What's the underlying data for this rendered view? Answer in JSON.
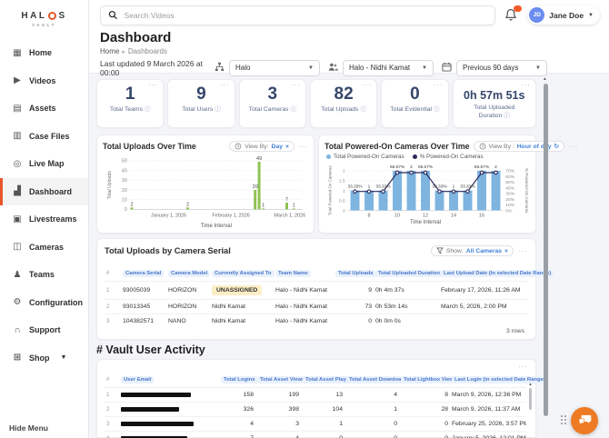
{
  "colors": {
    "accent_orange": "#e8562a",
    "chat_fab": "#ee7a23",
    "link_blue": "#3f7fd6",
    "table_header_blue": "#4a78c9",
    "bar_green": "#8fc152",
    "bar_blue": "#7db4e0",
    "line_navy": "#2e2a5c",
    "stat_navy": "#35466b",
    "badge_orange": "#f25c2a",
    "avatar_blue": "#6b8cf0",
    "unassigned_bg": "#fdeec6"
  },
  "brand": {
    "prefix": "HAL",
    "suffix": "S",
    "sub": "VAULT"
  },
  "topbar": {
    "search_placeholder": "Search Videos",
    "user_initials": "JD",
    "user_name": "Jane Doe"
  },
  "sidebar": {
    "items": [
      {
        "label": "Home",
        "icon": "home-icon",
        "active": false
      },
      {
        "label": "Videos",
        "icon": "videos-icon",
        "active": false
      },
      {
        "label": "Assets",
        "icon": "assets-icon",
        "active": false
      },
      {
        "label": "Case Files",
        "icon": "case-files-icon",
        "active": false
      },
      {
        "label": "Live Map",
        "icon": "live-map-icon",
        "active": false
      },
      {
        "label": "Dashboard",
        "icon": "dashboard-icon",
        "active": true
      },
      {
        "label": "Livestreams",
        "icon": "livestreams-icon",
        "active": false
      },
      {
        "label": "Cameras",
        "icon": "cameras-icon",
        "active": false
      },
      {
        "label": "Teams",
        "icon": "teams-icon",
        "active": false
      },
      {
        "label": "Configuration",
        "icon": "configuration-icon",
        "active": false
      },
      {
        "label": "Support",
        "icon": "support-icon",
        "active": false
      },
      {
        "label": "Shop",
        "icon": "shop-icon",
        "active": false,
        "chevron": true
      }
    ],
    "hide_menu": "Hide Menu"
  },
  "page": {
    "title": "Dashboard",
    "breadcrumb": {
      "home": "Home",
      "current": "Dashboards"
    },
    "last_updated": "Last updated 9 March 2026 at 00:00",
    "filters": [
      {
        "icon": "hierarchy-icon",
        "value": "Halo"
      },
      {
        "icon": "people-icon",
        "value": "Halo - Nidhi Kamat"
      },
      {
        "icon": "calendar-icon",
        "value": "Previous 90 days"
      }
    ]
  },
  "stats": [
    {
      "value": "1",
      "label": "Total Teams"
    },
    {
      "value": "9",
      "label": "Total Users"
    },
    {
      "value": "3",
      "label": "Total Cameras"
    },
    {
      "value": "82",
      "label": "Total Uploads"
    },
    {
      "value": "0",
      "label": "Total Evidential"
    },
    {
      "value": "0h 57m 51s",
      "label": "Total Uploaded Duration",
      "small": true
    }
  ],
  "chart_data": [
    {
      "type": "bar",
      "title": "Total Uploads Over Time",
      "view_by_label": "View By:",
      "view_by_value": "Day",
      "xlabel": "Time Interval",
      "ylabel": "Total Uploads",
      "ylim": [
        0,
        50
      ],
      "yticks": [
        0,
        10,
        20,
        30,
        40,
        50
      ],
      "x_tick_labels": [
        "January 1, 2026",
        "February 1, 2026",
        "March 1, 2026"
      ],
      "x_tick_pos": [
        0.225,
        0.585,
        0.925
      ],
      "bars": [
        {
          "pos": 0.012,
          "value": 2
        },
        {
          "pos": 0.335,
          "value": 2
        },
        {
          "pos": 0.725,
          "value": 20
        },
        {
          "pos": 0.748,
          "value": 49
        },
        {
          "pos": 0.772,
          "value": 1
        },
        {
          "pos": 0.908,
          "value": 7
        },
        {
          "pos": 0.948,
          "value": 1
        }
      ]
    },
    {
      "type": "bar+line",
      "title": "Total Powered-On Cameras Over Time",
      "view_by_label": "View By :",
      "view_by_value": "Hour of day",
      "xlabel": "Time Interval",
      "ylabel_left": "Total Powered-On Cameras",
      "ylabel_right": "% Powered-On Cameras",
      "legend": [
        "Total Powered-On Cameras",
        "% Powered-On Cameras"
      ],
      "hours": [
        7,
        8,
        9,
        10,
        11,
        12,
        13,
        14,
        15,
        16,
        17
      ],
      "series": [
        {
          "name": "Total Powered-On Cameras",
          "values": [
            1,
            1,
            1,
            2,
            2,
            2,
            1,
            1,
            1,
            2,
            2
          ]
        },
        {
          "name": "% Powered-On Cameras",
          "values": [
            33.33,
            33.33,
            33.33,
            66.67,
            66.67,
            66.67,
            33.33,
            33.33,
            33.33,
            66.67,
            66.67
          ]
        }
      ],
      "point_labels": [
        "33.33%",
        "1",
        "33.33%",
        "66.67%",
        "2",
        "66.67%",
        "33.33%",
        "1",
        "33.33%",
        "66.67%",
        "2"
      ],
      "ylim_left": [
        0,
        2
      ],
      "yticks_left": [
        0,
        0.5,
        1,
        1.5,
        2
      ],
      "ylim_right_pct": [
        0,
        70
      ],
      "yticks_right": [
        "0%",
        "10%",
        "20%",
        "30%",
        "40%",
        "50%",
        "60%",
        "70%"
      ],
      "x_ticks": [
        8,
        10,
        12,
        14,
        16
      ]
    }
  ],
  "uploads_table": {
    "title": "Total Uploads by Camera Serial",
    "show_label": "Show:",
    "show_value": "All Cameras",
    "headers": [
      "#",
      "Camera Serial",
      "Camera Model",
      "Currently Assigned To",
      "Team Name",
      "Total Uploads",
      "Total Uploaded Duration",
      "Last Upload Date (In selected Date Range)"
    ],
    "rows": [
      [
        "1",
        "93005039",
        "HORIZON",
        "UNASSIGNED",
        "Halo - Nidhi Kamat",
        "9",
        "0h 4m 37s",
        "February 17, 2026, 11:26 AM"
      ],
      [
        "2",
        "93013345",
        "HORIZON",
        "Nidhi Kamat",
        "Halo - Nidhi Kamat",
        "73",
        "0h 53m 14s",
        "March 5, 2026, 2:00 PM"
      ],
      [
        "3",
        "104382571",
        "NANO",
        "Nidhi Kamat",
        "Halo - Nidhi Kamat",
        "0",
        "0h 0m 0s",
        ""
      ]
    ],
    "footer": "3 rows"
  },
  "activity": {
    "section_title": "# Vault User Activity",
    "headers": [
      "#",
      "User Email",
      "Total Logins",
      "Total Asset Views",
      "Total Asset Plays",
      "Total Asset Downloads",
      "Total Lightbox Views",
      "Last Login (in selected Date Range)"
    ],
    "rows": [
      {
        "num": "1",
        "redact_width": 77,
        "values": [
          "158",
          "199",
          "13",
          "4",
          "8",
          "March 9, 2026, 12:36 PM"
        ]
      },
      {
        "num": "2",
        "redact_width": 64,
        "values": [
          "326",
          "398",
          "104",
          "1",
          "28",
          "March 9, 2026, 11:37 AM"
        ]
      },
      {
        "num": "3",
        "redact_width": 80,
        "values": [
          "4",
          "3",
          "1",
          "0",
          "0",
          "February 25, 2026, 3:57 PM"
        ]
      },
      {
        "num": "4",
        "redact_width": 73,
        "values": [
          "7",
          "4",
          "0",
          "0",
          "0",
          "January 5, 2026, 12:01 PM"
        ]
      }
    ]
  }
}
